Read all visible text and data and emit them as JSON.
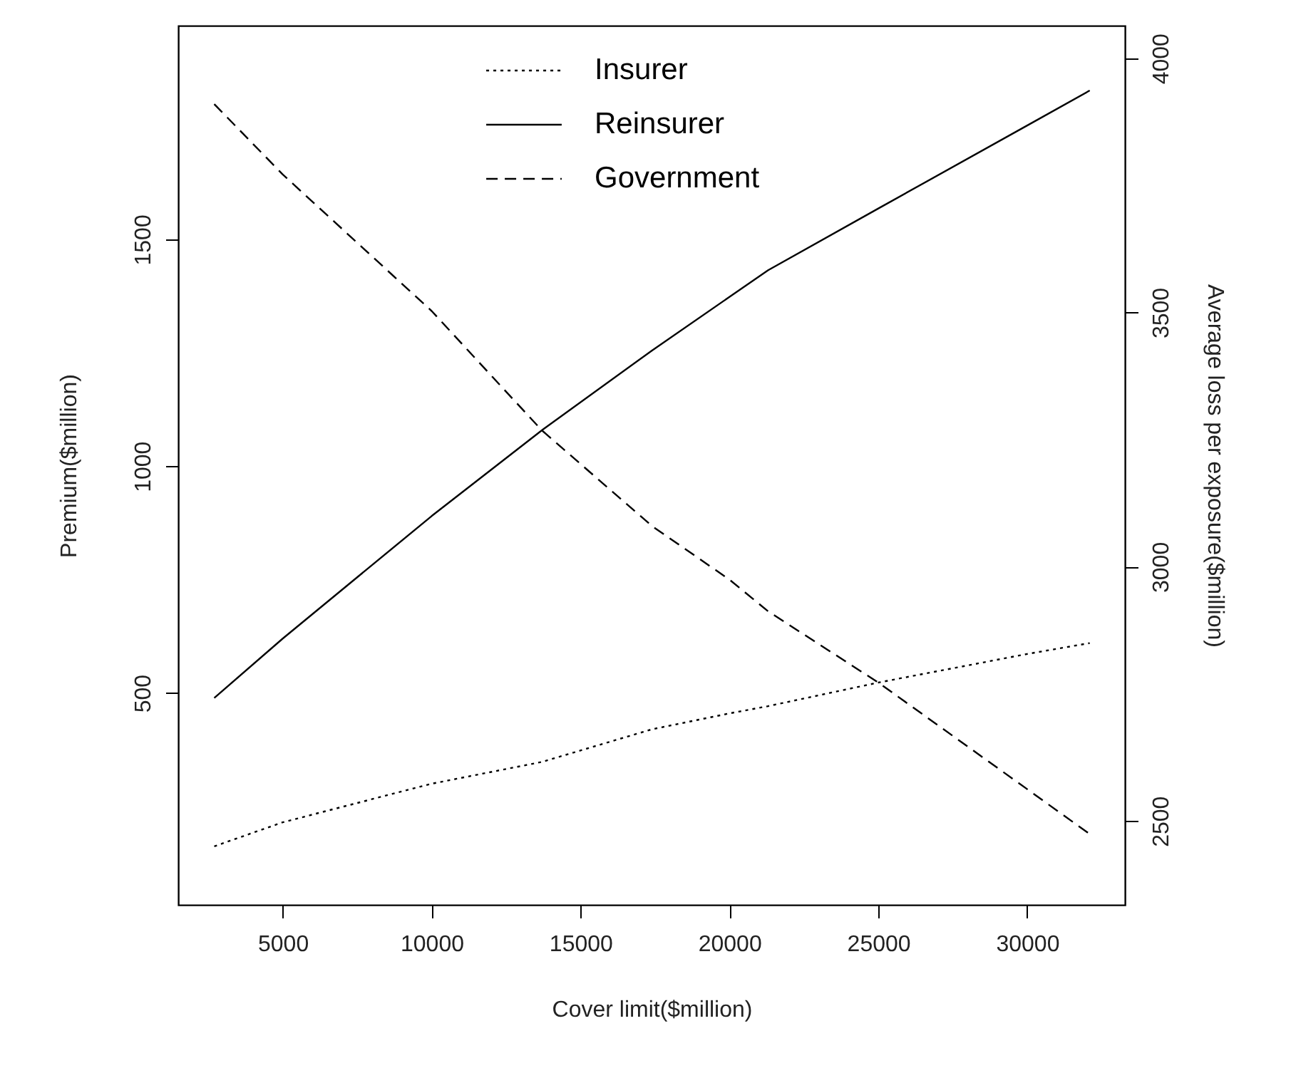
{
  "chart_data": {
    "type": "line",
    "xlabel": "Cover limit($million)",
    "ylabel": "Premium($million)",
    "y2label": "Average loss per exposure($million)",
    "x": [
      2700,
      5000,
      10000,
      13700,
      17400,
      20000,
      21300,
      25000,
      30000,
      32100
    ],
    "series": [
      {
        "name": "Insurer",
        "color": "#000000",
        "line_style": "dotted",
        "values": [
          162,
          215,
          300,
          348,
          420,
          455,
          471,
          523,
          586,
          610
        ]
      },
      {
        "name": "Reinsurer",
        "color": "#000000",
        "line_style": "solid",
        "values": [
          489,
          620,
          890,
          1079,
          1255,
          1373,
          1432,
          1568,
          1751,
          1828
        ]
      },
      {
        "name": "Government",
        "color": "#000000",
        "line_style": "dashed",
        "values": [
          1798,
          1643,
          1342,
          1079,
          868,
          750,
          680,
          523,
          288,
          189
        ]
      }
    ],
    "xlim": [
      1490,
      33281
    ],
    "xticks": [
      5000,
      10000,
      15000,
      20000,
      25000,
      30000
    ],
    "ylim": [
      33,
      1971
    ],
    "yticks": [
      500,
      1000,
      1500
    ],
    "y2lim": [
      2335,
      4064
    ],
    "y2ticks": [
      2500,
      3000,
      3500,
      4000
    ],
    "grid": false,
    "legend": "top",
    "marker": "none"
  }
}
